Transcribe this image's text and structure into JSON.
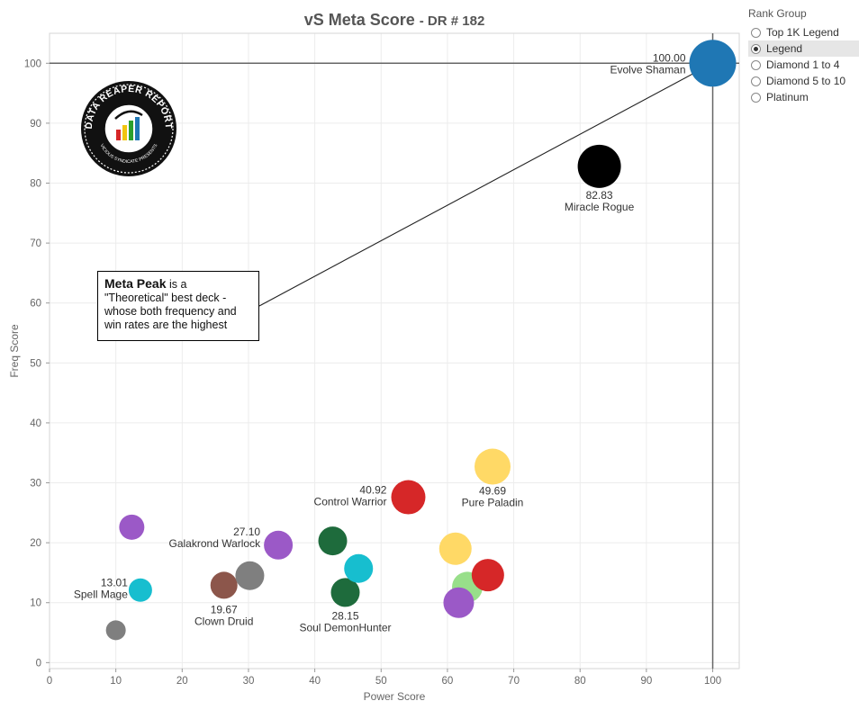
{
  "chart_data": {
    "type": "scatter",
    "title": "vS Meta Score",
    "subtitle": "- DR # 182",
    "xlabel": "Power Score",
    "ylabel": "Freq Score",
    "xlim": [
      0,
      104
    ],
    "ylim": [
      -1,
      105
    ],
    "xticks": [
      0,
      10,
      20,
      30,
      40,
      50,
      60,
      70,
      80,
      90,
      100
    ],
    "yticks": [
      0,
      10,
      20,
      30,
      40,
      50,
      60,
      70,
      80,
      90,
      100
    ],
    "grid": true,
    "reference_lines": {
      "x": 100,
      "y": 100
    },
    "points": [
      {
        "x": 100,
        "y": 100,
        "color": "#1f77b4",
        "size": 26,
        "label": "Evolve Shaman",
        "value": "100.00"
      },
      {
        "x": 82.9,
        "y": 82.8,
        "color": "#000000",
        "size": 24,
        "label": "Miracle Rogue",
        "value": "82.83"
      },
      {
        "x": 66.8,
        "y": 32.7,
        "color": "#ffd966",
        "size": 20,
        "label": "Pure Paladin",
        "value": "49.69"
      },
      {
        "x": 54.1,
        "y": 27.6,
        "color": "#d62728",
        "size": 19,
        "label": "Control Warrior",
        "value": "40.92"
      },
      {
        "x": 34.5,
        "y": 19.6,
        "color": "#9b59c7",
        "size": 16,
        "label": "Galakrond Warlock",
        "value": "27.10"
      },
      {
        "x": 44.6,
        "y": 11.7,
        "color": "#1e6b3c",
        "size": 16,
        "label": "Soul DemonHunter",
        "value": "28.15"
      },
      {
        "x": 26.3,
        "y": 12.9,
        "color": "#8c564b",
        "size": 15,
        "label": "Clown Druid",
        "value": "19.67"
      },
      {
        "x": 13.7,
        "y": 12.1,
        "color": "#17becf",
        "size": 13,
        "label": "Spell Mage",
        "value": "13.01"
      },
      {
        "x": 12.4,
        "y": 22.6,
        "color": "#9b59c7",
        "size": 14,
        "label": "",
        "value": ""
      },
      {
        "x": 10,
        "y": 5.4,
        "color": "#7f7f7f",
        "size": 11,
        "label": "",
        "value": ""
      },
      {
        "x": 30.2,
        "y": 14.5,
        "color": "#7f7f7f",
        "size": 16,
        "label": "",
        "value": ""
      },
      {
        "x": 42.7,
        "y": 20.3,
        "color": "#1e6b3c",
        "size": 16,
        "label": "",
        "value": ""
      },
      {
        "x": 46.6,
        "y": 15.7,
        "color": "#17becf",
        "size": 16,
        "label": "",
        "value": ""
      },
      {
        "x": 61.2,
        "y": 19.0,
        "color": "#ffd966",
        "size": 18,
        "label": "",
        "value": ""
      },
      {
        "x": 63.0,
        "y": 12.6,
        "color": "#98df8a",
        "size": 17,
        "label": "",
        "value": ""
      },
      {
        "x": 61.7,
        "y": 10.0,
        "color": "#9b59c7",
        "size": 17,
        "label": "",
        "value": ""
      },
      {
        "x": 66.1,
        "y": 14.6,
        "color": "#d62728",
        "size": 18,
        "label": "",
        "value": ""
      }
    ]
  },
  "legend": {
    "title": "Rank Group",
    "items": [
      "Top 1K Legend",
      "Legend",
      "Diamond 1 to 4",
      "Diamond 5 to 10",
      "Platinum"
    ],
    "selected": "Legend"
  },
  "callout": {
    "bold": "Meta Peak",
    "line1": " is a",
    "line2": "\"Theoretical\" best deck -",
    "line3": "whose both frequency and",
    "line4": "win rates are the highest"
  },
  "logo": {
    "top_text": "DATA REAPER REPORT",
    "bottom_text": "VICIOUS SYNDICATE PRESENTS"
  }
}
